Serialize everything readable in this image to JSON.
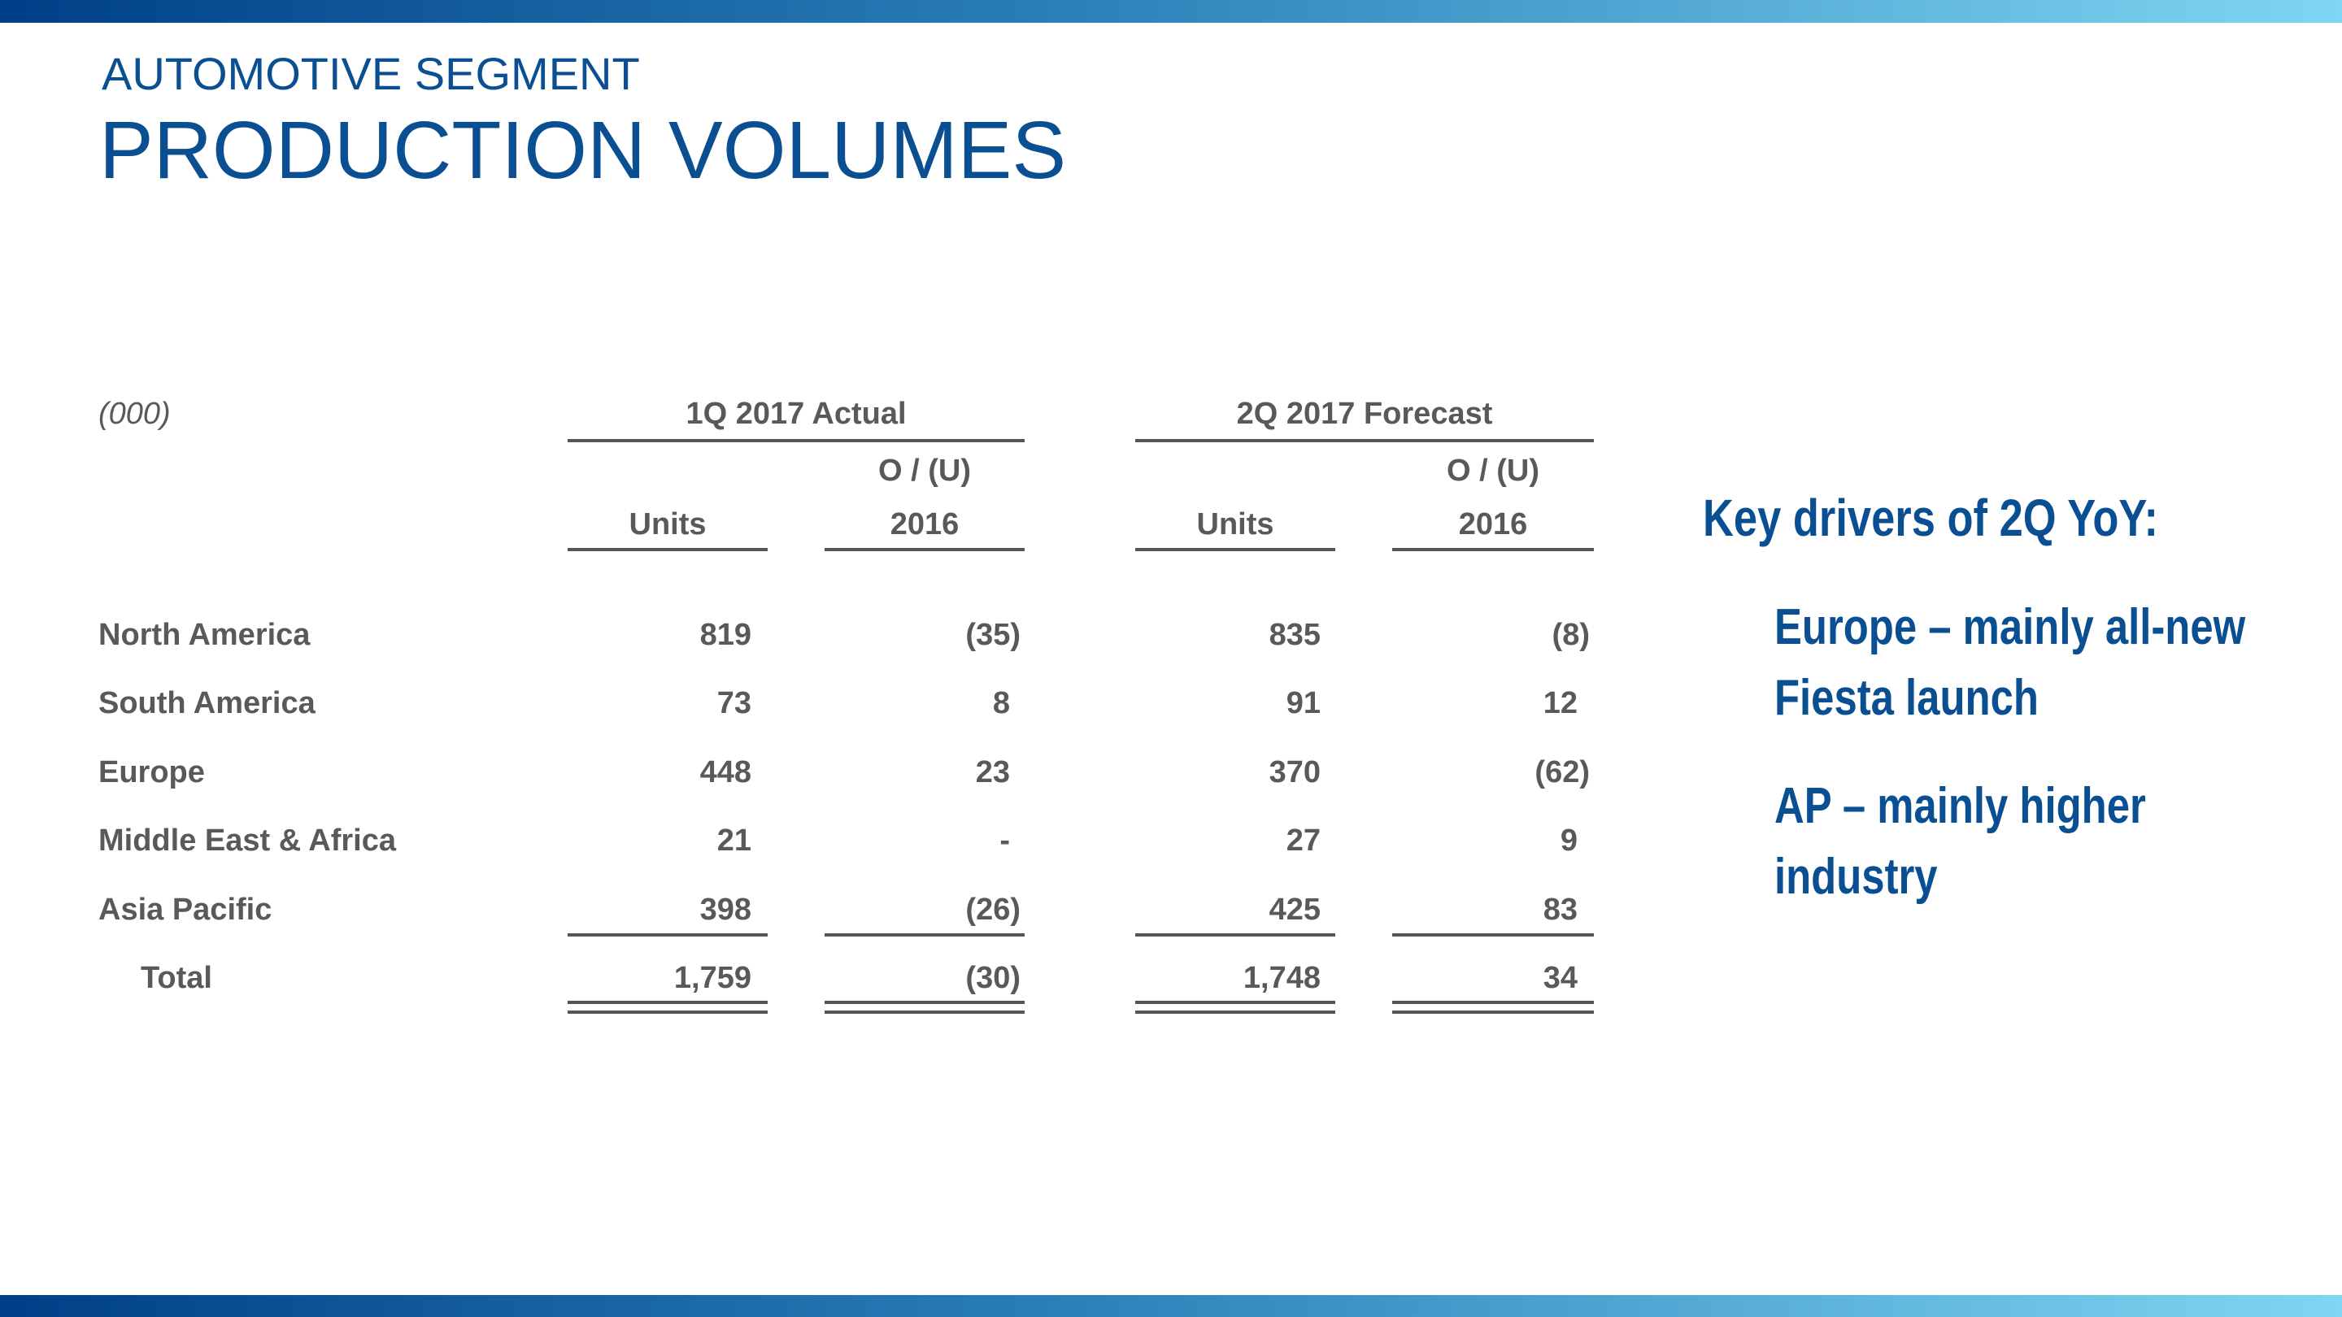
{
  "header": {
    "subtitle": "AUTOMOTIVE SEGMENT",
    "title": "PRODUCTION VOLUMES"
  },
  "table": {
    "unit_label": "(000)",
    "groups": [
      "1Q 2017 Actual",
      "2Q 2017 Forecast"
    ],
    "columns": [
      [
        "Units"
      ],
      [
        "O / (U)",
        "2016"
      ],
      [
        "Units"
      ],
      [
        "O / (U)",
        "2016"
      ]
    ],
    "rows": [
      [
        "North America",
        "819",
        "(35)",
        "835",
        "(8)"
      ],
      [
        "South America",
        "73",
        "8",
        "91",
        "12"
      ],
      [
        "Europe",
        "448",
        "23",
        "370",
        "(62)"
      ],
      [
        "Middle East & Africa",
        "21",
        "-",
        "27",
        "9"
      ],
      [
        "Asia Pacific",
        "398",
        "(26)",
        "425",
        "83"
      ],
      [
        "Total",
        "1,759",
        "(30)",
        "1,748",
        "34"
      ]
    ]
  },
  "notes": {
    "heading": "Key drivers of 2Q YoY:",
    "items": [
      "Europe – mainly all-new Fiesta launch",
      "AP – mainly higher industry"
    ]
  }
}
